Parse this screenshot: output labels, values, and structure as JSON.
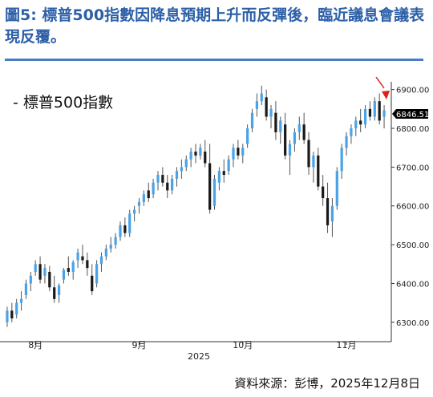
{
  "header": {
    "title": "圖5: 標普500指數因降息預期上升而反彈後，臨近議息會議表現反覆。"
  },
  "legend": {
    "label": "- 標普500指數"
  },
  "source": "資料來源：彭博，2025年12月8日",
  "colors": {
    "title": "#2c5fa8",
    "rule": "#4a7cc4",
    "up": "#4aa3e8",
    "down": "#1a1a1a",
    "wick": "#555555",
    "arrow": "#e0201c"
  },
  "chart_data": {
    "type": "candlestick",
    "title": "",
    "series": [
      {
        "name": "標普500指數"
      }
    ],
    "x_labels": [
      "8月",
      "9月",
      "10月",
      "11月"
    ],
    "x_year_label": "2025",
    "y_ticks": [
      "6900.00",
      "6800.00",
      "6700.00",
      "6600.00",
      "6500.00",
      "6400.00",
      "6300.00"
    ],
    "ylim": [
      6250,
      6920
    ],
    "last_value": "6846.51",
    "candles": [
      {
        "o": 6300,
        "h": 6340,
        "l": 6288,
        "c": 6330
      },
      {
        "o": 6330,
        "h": 6350,
        "l": 6300,
        "c": 6310
      },
      {
        "o": 6320,
        "h": 6360,
        "l": 6310,
        "c": 6350
      },
      {
        "o": 6350,
        "h": 6380,
        "l": 6330,
        "c": 6360
      },
      {
        "o": 6370,
        "h": 6410,
        "l": 6360,
        "c": 6400
      },
      {
        "o": 6400,
        "h": 6430,
        "l": 6380,
        "c": 6420
      },
      {
        "o": 6430,
        "h": 6460,
        "l": 6420,
        "c": 6450
      },
      {
        "o": 6450,
        "h": 6470,
        "l": 6400,
        "c": 6410
      },
      {
        "o": 6420,
        "h": 6450,
        "l": 6400,
        "c": 6440
      },
      {
        "o": 6430,
        "h": 6445,
        "l": 6380,
        "c": 6390
      },
      {
        "o": 6390,
        "h": 6420,
        "l": 6350,
        "c": 6360
      },
      {
        "o": 6370,
        "h": 6400,
        "l": 6350,
        "c": 6395
      },
      {
        "o": 6410,
        "h": 6440,
        "l": 6400,
        "c": 6435
      },
      {
        "o": 6440,
        "h": 6470,
        "l": 6420,
        "c": 6430
      },
      {
        "o": 6430,
        "h": 6460,
        "l": 6410,
        "c": 6455
      },
      {
        "o": 6460,
        "h": 6490,
        "l": 6440,
        "c": 6480
      },
      {
        "o": 6470,
        "h": 6500,
        "l": 6450,
        "c": 6460
      },
      {
        "o": 6460,
        "h": 6480,
        "l": 6420,
        "c": 6440
      },
      {
        "o": 6420,
        "h": 6450,
        "l": 6370,
        "c": 6380
      },
      {
        "o": 6400,
        "h": 6460,
        "l": 6390,
        "c": 6450
      },
      {
        "o": 6450,
        "h": 6480,
        "l": 6430,
        "c": 6470
      },
      {
        "o": 6470,
        "h": 6500,
        "l": 6460,
        "c": 6490
      },
      {
        "o": 6490,
        "h": 6520,
        "l": 6480,
        "c": 6500
      },
      {
        "o": 6500,
        "h": 6530,
        "l": 6490,
        "c": 6520
      },
      {
        "o": 6520,
        "h": 6560,
        "l": 6510,
        "c": 6550
      },
      {
        "o": 6550,
        "h": 6570,
        "l": 6520,
        "c": 6530
      },
      {
        "o": 6530,
        "h": 6590,
        "l": 6520,
        "c": 6580
      },
      {
        "o": 6580,
        "h": 6600,
        "l": 6560,
        "c": 6590
      },
      {
        "o": 6600,
        "h": 6620,
        "l": 6580,
        "c": 6610
      },
      {
        "o": 6610,
        "h": 6640,
        "l": 6600,
        "c": 6630
      },
      {
        "o": 6640,
        "h": 6660,
        "l": 6610,
        "c": 6620
      },
      {
        "o": 6630,
        "h": 6670,
        "l": 6620,
        "c": 6660
      },
      {
        "o": 6660,
        "h": 6690,
        "l": 6640,
        "c": 6680
      },
      {
        "o": 6680,
        "h": 6700,
        "l": 6650,
        "c": 6660
      },
      {
        "o": 6660,
        "h": 6680,
        "l": 6620,
        "c": 6640
      },
      {
        "o": 6640,
        "h": 6680,
        "l": 6630,
        "c": 6670
      },
      {
        "o": 6670,
        "h": 6700,
        "l": 6650,
        "c": 6690
      },
      {
        "o": 6690,
        "h": 6720,
        "l": 6670,
        "c": 6700
      },
      {
        "o": 6700,
        "h": 6730,
        "l": 6690,
        "c": 6720
      },
      {
        "o": 6720,
        "h": 6750,
        "l": 6700,
        "c": 6740
      },
      {
        "o": 6740,
        "h": 6760,
        "l": 6710,
        "c": 6730
      },
      {
        "o": 6730,
        "h": 6760,
        "l": 6720,
        "c": 6750
      },
      {
        "o": 6740,
        "h": 6770,
        "l": 6700,
        "c": 6710
      },
      {
        "o": 6710,
        "h": 6760,
        "l": 6580,
        "c": 6590
      },
      {
        "o": 6600,
        "h": 6680,
        "l": 6590,
        "c": 6670
      },
      {
        "o": 6660,
        "h": 6700,
        "l": 6640,
        "c": 6690
      },
      {
        "o": 6690,
        "h": 6720,
        "l": 6660,
        "c": 6680
      },
      {
        "o": 6690,
        "h": 6730,
        "l": 6680,
        "c": 6720
      },
      {
        "o": 6720,
        "h": 6760,
        "l": 6700,
        "c": 6750
      },
      {
        "o": 6750,
        "h": 6770,
        "l": 6720,
        "c": 6730
      },
      {
        "o": 6730,
        "h": 6760,
        "l": 6710,
        "c": 6750
      },
      {
        "o": 6760,
        "h": 6810,
        "l": 6750,
        "c": 6800
      },
      {
        "o": 6800,
        "h": 6850,
        "l": 6790,
        "c": 6840
      },
      {
        "o": 6850,
        "h": 6890,
        "l": 6830,
        "c": 6870
      },
      {
        "o": 6870,
        "h": 6910,
        "l": 6860,
        "c": 6890
      },
      {
        "o": 6880,
        "h": 6900,
        "l": 6820,
        "c": 6830
      },
      {
        "o": 6830,
        "h": 6860,
        "l": 6800,
        "c": 6850
      },
      {
        "o": 6840,
        "h": 6870,
        "l": 6770,
        "c": 6790
      },
      {
        "o": 6790,
        "h": 6830,
        "l": 6760,
        "c": 6820
      },
      {
        "o": 6810,
        "h": 6840,
        "l": 6720,
        "c": 6730
      },
      {
        "o": 6730,
        "h": 6770,
        "l": 6680,
        "c": 6760
      },
      {
        "o": 6760,
        "h": 6800,
        "l": 6740,
        "c": 6790
      },
      {
        "o": 6790,
        "h": 6830,
        "l": 6770,
        "c": 6810
      },
      {
        "o": 6810,
        "h": 6840,
        "l": 6760,
        "c": 6770
      },
      {
        "o": 6770,
        "h": 6790,
        "l": 6680,
        "c": 6700
      },
      {
        "o": 6700,
        "h": 6740,
        "l": 6660,
        "c": 6730
      },
      {
        "o": 6730,
        "h": 6750,
        "l": 6640,
        "c": 6650
      },
      {
        "o": 6650,
        "h": 6680,
        "l": 6600,
        "c": 6620
      },
      {
        "o": 6620,
        "h": 6660,
        "l": 6530,
        "c": 6550
      },
      {
        "o": 6560,
        "h": 6620,
        "l": 6520,
        "c": 6600
      },
      {
        "o": 6600,
        "h": 6700,
        "l": 6590,
        "c": 6690
      },
      {
        "o": 6690,
        "h": 6760,
        "l": 6670,
        "c": 6750
      },
      {
        "o": 6750,
        "h": 6790,
        "l": 6730,
        "c": 6780
      },
      {
        "o": 6780,
        "h": 6810,
        "l": 6760,
        "c": 6800
      },
      {
        "o": 6800,
        "h": 6830,
        "l": 6780,
        "c": 6820
      },
      {
        "o": 6820,
        "h": 6850,
        "l": 6790,
        "c": 6810
      },
      {
        "o": 6810,
        "h": 6860,
        "l": 6800,
        "c": 6850
      },
      {
        "o": 6850,
        "h": 6870,
        "l": 6820,
        "c": 6830
      },
      {
        "o": 6830,
        "h": 6880,
        "l": 6820,
        "c": 6870
      },
      {
        "o": 6870,
        "h": 6890,
        "l": 6810,
        "c": 6820
      },
      {
        "o": 6830,
        "h": 6860,
        "l": 6800,
        "c": 6846.51
      }
    ]
  }
}
